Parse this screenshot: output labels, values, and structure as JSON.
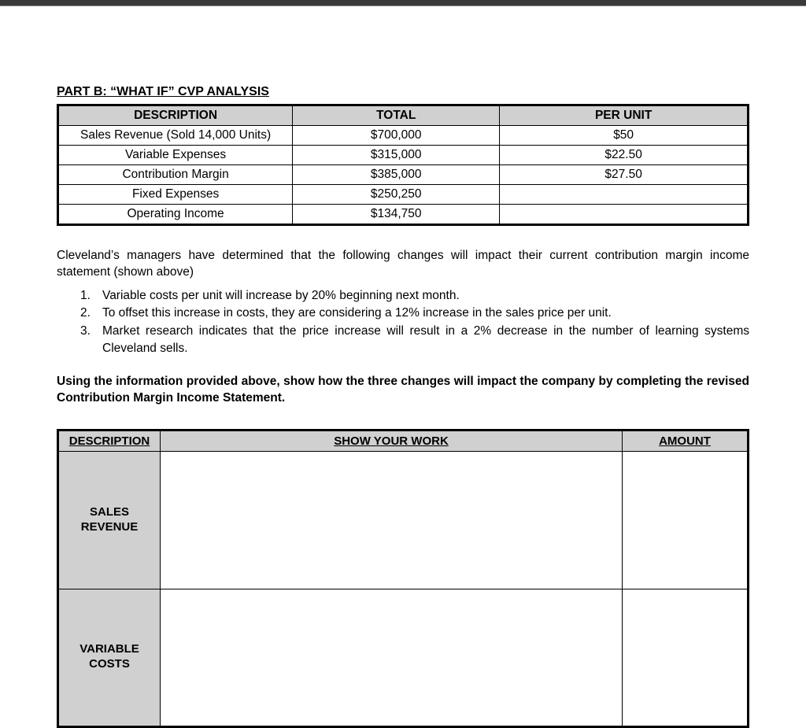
{
  "partTitle": "PART B: “WHAT IF” CVP ANALYSIS",
  "cvpTable": {
    "headers": {
      "description": "DESCRIPTION",
      "total": "TOTAL",
      "perUnit": "PER UNIT"
    },
    "rows": [
      {
        "description": "Sales Revenue (Sold 14,000 Units)",
        "total": "$700,000",
        "perUnit": "$50"
      },
      {
        "description": "Variable Expenses",
        "total": "$315,000",
        "perUnit": "$22.50"
      },
      {
        "description": "Contribution Margin",
        "total": "$385,000",
        "perUnit": "$27.50"
      },
      {
        "description": "Fixed Expenses",
        "total": "$250,250",
        "perUnit": ""
      },
      {
        "description": "Operating Income",
        "total": "$134,750",
        "perUnit": ""
      }
    ],
    "columnWidths": [
      "34%",
      "30%",
      "36%"
    ],
    "headerBg": "#d0d0d0",
    "borderColor": "#000000"
  },
  "introText": "Cleveland’s managers have determined that the following changes will impact their current contribution margin income statement (shown above)",
  "listItems": [
    "Variable costs per unit will increase by 20% beginning next month.",
    "To offset this increase in costs, they are considering a 12% increase in the sales price per unit.",
    "Market research indicates that the price increase will result in a 2% decrease in the number of learning systems Cleveland sells."
  ],
  "instruction": "Using the information provided above, show how the three changes will impact the company by completing the revised Contribution Margin Income Statement.",
  "workTable": {
    "headers": {
      "description": "DESCRIPTION",
      "work": "SHOW YOUR WORK",
      "amount": "AMOUNT"
    },
    "rows": [
      {
        "label": "SALES\nREVENUE"
      },
      {
        "label": "VARIABLE\nCOSTS"
      }
    ],
    "headerBg": "#d0d0d0",
    "labelBg": "#d0d0d0",
    "borderColor": "#000000"
  },
  "colors": {
    "topBar": "#3a3a3a",
    "background": "#ffffff"
  },
  "typography": {
    "fontFamily": "Arial",
    "bodyFontSize": 15.5,
    "titleFontSize": 16
  }
}
